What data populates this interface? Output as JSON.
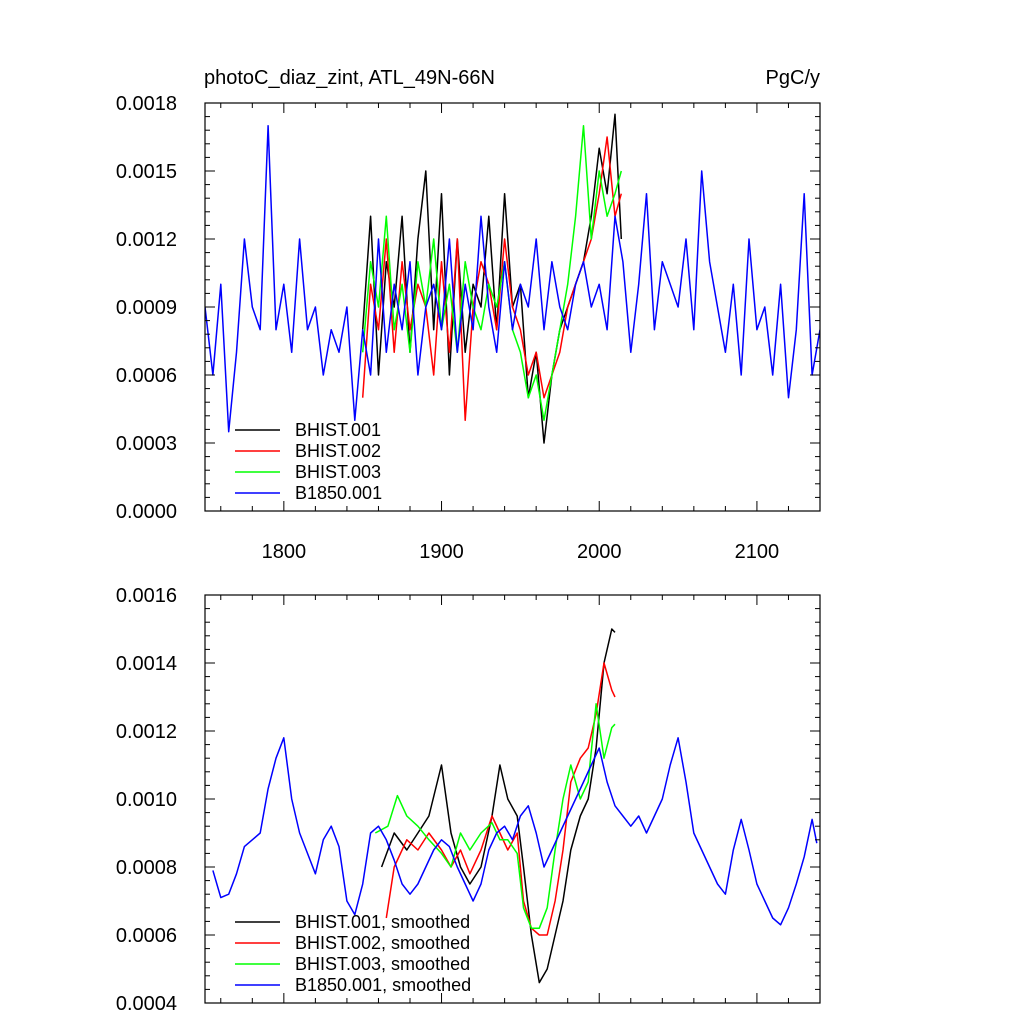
{
  "chart_data": [
    {
      "type": "line",
      "title": "photoC_diaz_zint, ATL_49N-66N",
      "units": "PgC/y",
      "xlim": [
        1750,
        2140
      ],
      "ylim": [
        0,
        0.0018
      ],
      "x_ticks": [
        1800,
        1900,
        2000,
        2100
      ],
      "x_tick_labels": [
        "1800",
        "1900",
        "2000",
        "2100"
      ],
      "y_ticks": [
        0,
        0.0003,
        0.0006,
        0.0009,
        0.0012,
        0.0015,
        0.0018
      ],
      "y_tick_labels": [
        "0.0000",
        "0.0003",
        "0.0006",
        "0.0009",
        "0.0012",
        "0.0015",
        "0.0018"
      ],
      "legend_position": "bottom-left",
      "series": [
        {
          "name": "BHIST.001",
          "color": "#000000",
          "x": [
            1850,
            1855,
            1860,
            1865,
            1870,
            1875,
            1880,
            1885,
            1890,
            1895,
            1900,
            1905,
            1910,
            1915,
            1920,
            1925,
            1930,
            1935,
            1940,
            1945,
            1950,
            1955,
            1960,
            1965,
            1970,
            1975,
            1980,
            1985,
            1990,
            1995,
            2000,
            2005,
            2010,
            2014
          ],
          "values": [
            0.0008,
            0.0013,
            0.0006,
            0.0011,
            0.0009,
            0.0013,
            0.0007,
            0.0012,
            0.0015,
            0.0008,
            0.0014,
            0.0006,
            0.0012,
            0.0007,
            0.001,
            0.0009,
            0.0013,
            0.0008,
            0.0014,
            0.0009,
            0.001,
            0.0005,
            0.0007,
            0.0003,
            0.0006,
            0.0008,
            0.0009,
            0.001,
            0.0011,
            0.0013,
            0.0016,
            0.0014,
            0.00175,
            0.0012
          ]
        },
        {
          "name": "BHIST.002",
          "color": "#ff0000",
          "x": [
            1850,
            1855,
            1860,
            1865,
            1870,
            1875,
            1880,
            1885,
            1890,
            1895,
            1900,
            1905,
            1910,
            1915,
            1920,
            1925,
            1930,
            1935,
            1940,
            1945,
            1950,
            1955,
            1960,
            1965,
            1970,
            1975,
            1980,
            1985,
            1990,
            1995,
            2000,
            2005,
            2010,
            2014
          ],
          "values": [
            0.0005,
            0.001,
            0.0008,
            0.0012,
            0.0007,
            0.0011,
            0.0008,
            0.001,
            0.0009,
            0.0006,
            0.0011,
            0.0007,
            0.0012,
            0.0004,
            0.0009,
            0.0011,
            0.001,
            0.0008,
            0.0012,
            0.0009,
            0.0008,
            0.0006,
            0.0007,
            0.0005,
            0.0006,
            0.0007,
            0.0009,
            0.001,
            0.0011,
            0.0012,
            0.0014,
            0.00165,
            0.0013,
            0.0014
          ]
        },
        {
          "name": "BHIST.003",
          "color": "#00ff00",
          "x": [
            1850,
            1855,
            1860,
            1865,
            1870,
            1875,
            1880,
            1885,
            1890,
            1895,
            1900,
            1905,
            1910,
            1915,
            1920,
            1925,
            1930,
            1935,
            1940,
            1945,
            1950,
            1955,
            1960,
            1965,
            1970,
            1975,
            1980,
            1985,
            1990,
            1995,
            2000,
            2005,
            2010,
            2014
          ],
          "values": [
            0.0007,
            0.0011,
            0.0009,
            0.0013,
            0.0008,
            0.001,
            0.0007,
            0.0011,
            0.0009,
            0.0012,
            0.0008,
            0.001,
            0.0007,
            0.0011,
            0.0009,
            0.0008,
            0.001,
            0.0009,
            0.0011,
            0.0008,
            0.0007,
            0.0005,
            0.0006,
            0.0004,
            0.0006,
            0.0008,
            0.001,
            0.0013,
            0.0017,
            0.0012,
            0.0015,
            0.0013,
            0.0014,
            0.0015
          ]
        },
        {
          "name": "B1850.001",
          "color": "#0000ff",
          "x": [
            1750,
            1755,
            1760,
            1765,
            1770,
            1775,
            1780,
            1785,
            1790,
            1795,
            1800,
            1805,
            1810,
            1815,
            1820,
            1825,
            1830,
            1835,
            1840,
            1845,
            1850,
            1855,
            1860,
            1865,
            1870,
            1875,
            1880,
            1885,
            1890,
            1895,
            1900,
            1905,
            1910,
            1915,
            1920,
            1925,
            1930,
            1935,
            1940,
            1945,
            1950,
            1955,
            1960,
            1965,
            1970,
            1975,
            1980,
            1985,
            1990,
            1995,
            2000,
            2005,
            2010,
            2015,
            2020,
            2025,
            2030,
            2035,
            2040,
            2045,
            2050,
            2055,
            2060,
            2065,
            2070,
            2075,
            2080,
            2085,
            2090,
            2095,
            2100,
            2105,
            2110,
            2115,
            2120,
            2125,
            2130,
            2135,
            2140
          ],
          "values": [
            0.0009,
            0.0006,
            0.001,
            0.00035,
            0.0007,
            0.0012,
            0.0009,
            0.0008,
            0.0017,
            0.0008,
            0.001,
            0.0007,
            0.0012,
            0.0008,
            0.0009,
            0.0006,
            0.0008,
            0.0007,
            0.0009,
            0.0004,
            0.0008,
            0.0006,
            0.0012,
            0.0007,
            0.001,
            0.0008,
            0.0011,
            0.0006,
            0.0009,
            0.001,
            0.0008,
            0.0012,
            0.0007,
            0.001,
            0.0008,
            0.0013,
            0.0009,
            0.0007,
            0.0011,
            0.0008,
            0.001,
            0.0009,
            0.0012,
            0.0008,
            0.0011,
            0.0009,
            0.0008,
            0.001,
            0.0011,
            0.0009,
            0.001,
            0.0008,
            0.0013,
            0.0011,
            0.0007,
            0.001,
            0.0014,
            0.0008,
            0.0011,
            0.001,
            0.0009,
            0.0012,
            0.0008,
            0.0015,
            0.0011,
            0.0009,
            0.0007,
            0.001,
            0.0006,
            0.0012,
            0.0008,
            0.0009,
            0.0006,
            0.001,
            0.0005,
            0.0008,
            0.0014,
            0.0006,
            0.0008
          ]
        }
      ]
    },
    {
      "type": "line",
      "title": "",
      "xlim": [
        1750,
        2140
      ],
      "ylim": [
        0.0004,
        0.0016
      ],
      "x_ticks": [
        1800,
        1900,
        2000,
        2100
      ],
      "y_ticks": [
        0.0004,
        0.0006,
        0.0008,
        0.001,
        0.0012,
        0.0014,
        0.0016
      ],
      "y_tick_labels": [
        "0.0004",
        "0.0006",
        "0.0008",
        "0.0010",
        "0.0012",
        "0.0014",
        "0.0016"
      ],
      "legend_position": "bottom-left",
      "series": [
        {
          "name": "BHIST.001, smoothed",
          "color": "#000000",
          "x": [
            1862,
            1870,
            1878,
            1885,
            1892,
            1900,
            1906,
            1912,
            1918,
            1925,
            1932,
            1937,
            1942,
            1948,
            1952,
            1957,
            1962,
            1967,
            1972,
            1977,
            1982,
            1988,
            1993,
            1998,
            2003,
            2008,
            2010
          ],
          "values": [
            0.0008,
            0.0009,
            0.00085,
            0.0009,
            0.00095,
            0.0011,
            0.0009,
            0.0008,
            0.00075,
            0.0008,
            0.00095,
            0.0011,
            0.001,
            0.00095,
            0.0008,
            0.0006,
            0.00046,
            0.0005,
            0.0006,
            0.0007,
            0.00085,
            0.00095,
            0.001,
            0.00115,
            0.0014,
            0.0015,
            0.00149
          ]
        },
        {
          "name": "BHIST.002, smoothed",
          "color": "#ff0000",
          "x": [
            1865,
            1870,
            1878,
            1885,
            1892,
            1900,
            1906,
            1912,
            1918,
            1925,
            1932,
            1937,
            1942,
            1948,
            1952,
            1957,
            1962,
            1967,
            1972,
            1977,
            1982,
            1988,
            1993,
            1998,
            2003,
            2008,
            2010
          ],
          "values": [
            0.00065,
            0.0008,
            0.00088,
            0.00085,
            0.0009,
            0.00085,
            0.0008,
            0.00085,
            0.00078,
            0.00085,
            0.00095,
            0.0009,
            0.00085,
            0.0009,
            0.0007,
            0.00062,
            0.0006,
            0.0006,
            0.0007,
            0.00085,
            0.00105,
            0.00112,
            0.00115,
            0.00125,
            0.0014,
            0.00132,
            0.0013
          ]
        },
        {
          "name": "BHIST.003, smoothed",
          "color": "#00ff00",
          "x": [
            1858,
            1866,
            1872,
            1878,
            1885,
            1892,
            1900,
            1906,
            1912,
            1918,
            1925,
            1932,
            1937,
            1942,
            1948,
            1952,
            1957,
            1962,
            1967,
            1972,
            1977,
            1982,
            1988,
            1993,
            1998,
            2003,
            2008,
            2010
          ],
          "values": [
            0.0009,
            0.00092,
            0.00101,
            0.00095,
            0.00092,
            0.00088,
            0.00084,
            0.0008,
            0.0009,
            0.00085,
            0.0009,
            0.00093,
            0.00088,
            0.00088,
            0.00084,
            0.00068,
            0.00062,
            0.00062,
            0.00068,
            0.00085,
            0.001,
            0.0011,
            0.001,
            0.00105,
            0.00128,
            0.00112,
            0.00121,
            0.00122
          ]
        },
        {
          "name": "B1850.001, smoothed",
          "color": "#0000ff",
          "x": [
            1755,
            1760,
            1765,
            1770,
            1775,
            1780,
            1785,
            1790,
            1795,
            1800,
            1805,
            1810,
            1815,
            1820,
            1825,
            1830,
            1835,
            1840,
            1845,
            1850,
            1855,
            1860,
            1865,
            1870,
            1875,
            1880,
            1885,
            1890,
            1895,
            1900,
            1905,
            1910,
            1915,
            1920,
            1925,
            1930,
            1935,
            1940,
            1945,
            1950,
            1955,
            1960,
            1965,
            1970,
            1975,
            1980,
            1985,
            1990,
            1995,
            2000,
            2005,
            2010,
            2015,
            2020,
            2025,
            2030,
            2035,
            2040,
            2045,
            2050,
            2055,
            2060,
            2065,
            2070,
            2075,
            2080,
            2085,
            2090,
            2095,
            2100,
            2105,
            2110,
            2115,
            2120,
            2125,
            2130,
            2135,
            2138
          ],
          "values": [
            0.00079,
            0.00071,
            0.00072,
            0.00078,
            0.00086,
            0.00088,
            0.0009,
            0.00103,
            0.00112,
            0.00118,
            0.001,
            0.0009,
            0.00084,
            0.00078,
            0.00088,
            0.00092,
            0.00086,
            0.0007,
            0.00066,
            0.00075,
            0.0009,
            0.00092,
            0.00088,
            0.00082,
            0.00075,
            0.00072,
            0.00075,
            0.0008,
            0.00085,
            0.00088,
            0.00086,
            0.0008,
            0.00075,
            0.0007,
            0.00075,
            0.00085,
            0.0009,
            0.00092,
            0.00088,
            0.00095,
            0.00098,
            0.0009,
            0.0008,
            0.00085,
            0.0009,
            0.00095,
            0.001,
            0.00105,
            0.0011,
            0.00115,
            0.00105,
            0.00098,
            0.00095,
            0.00092,
            0.00095,
            0.0009,
            0.00095,
            0.001,
            0.0011,
            0.00118,
            0.00105,
            0.0009,
            0.00085,
            0.0008,
            0.00075,
            0.00072,
            0.00085,
            0.00094,
            0.00085,
            0.00075,
            0.0007,
            0.00065,
            0.00063,
            0.00068,
            0.00075,
            0.00083,
            0.00094,
            0.00087
          ]
        }
      ]
    }
  ]
}
